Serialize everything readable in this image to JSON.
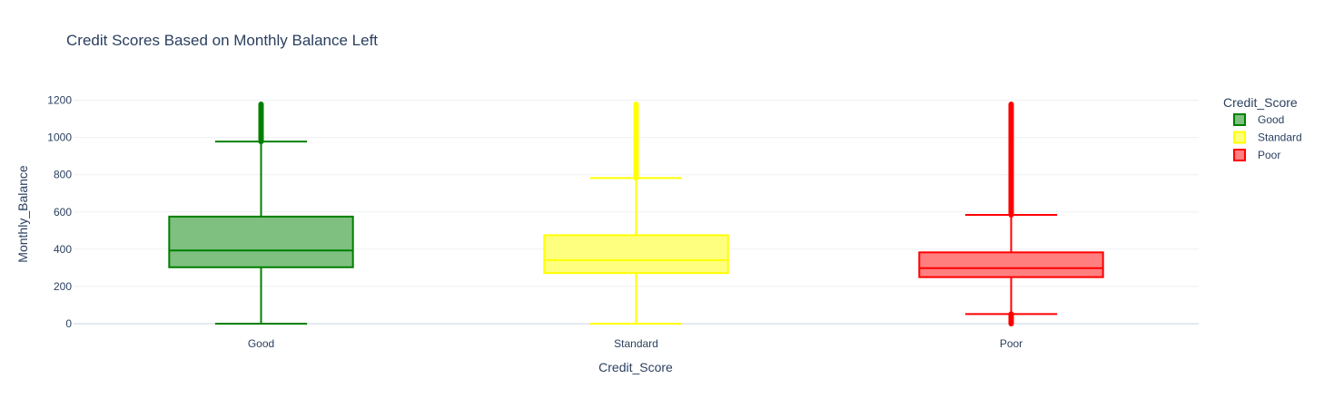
{
  "chart_data": {
    "type": "box",
    "title": "Credit Scores Based on Monthly Balance Left",
    "xlabel": "Credit_Score",
    "ylabel": "Monthly_Balance",
    "ylim": [
      0,
      1200
    ],
    "yticks": [
      0,
      200,
      400,
      600,
      800,
      1000,
      1200
    ],
    "categories": [
      "Good",
      "Standard",
      "Poor"
    ],
    "legend": {
      "title": "Credit_Score",
      "position": "top-right"
    },
    "grid": true,
    "series": [
      {
        "name": "Good",
        "color": "#008000",
        "fill": "#7fbf7f",
        "min": 0,
        "q1": 303,
        "median": 393,
        "q3": 575,
        "max": 978,
        "outliers_high": [
          978,
          1178
        ],
        "outliers_low": null
      },
      {
        "name": "Standard",
        "color": "#ffff00",
        "fill": "#ffff7f",
        "min": 0,
        "q1": 272,
        "median": 341,
        "q3": 475,
        "max": 782,
        "outliers_high": [
          782,
          1178
        ],
        "outliers_low": null
      },
      {
        "name": "Poor",
        "color": "#ff0000",
        "fill": "#ff7f7f",
        "min": 52,
        "q1": 250,
        "median": 298,
        "q3": 383,
        "max": 584,
        "outliers_high": [
          584,
          1178
        ],
        "outliers_low": [
          0,
          52
        ]
      }
    ]
  }
}
